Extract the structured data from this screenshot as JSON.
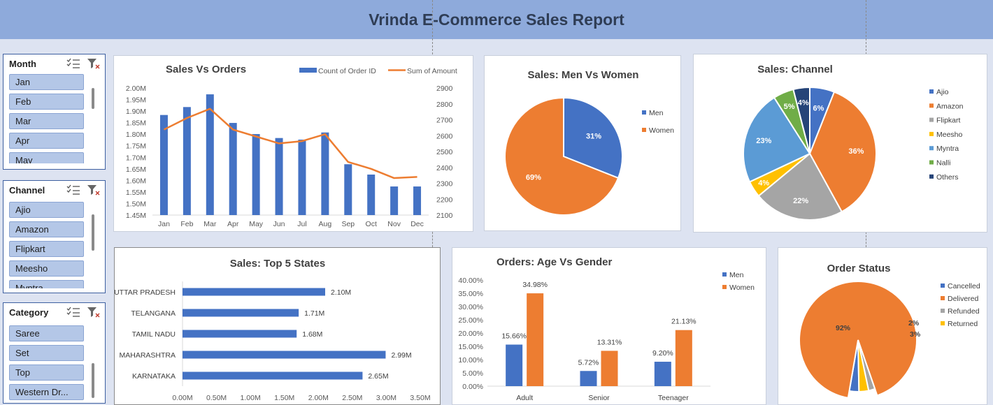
{
  "report_title": "Vrinda E-Commerce Sales Report",
  "colors": {
    "blue": "#4472c4",
    "orange": "#ed7d31",
    "gray": "#a5a5a5",
    "yellow": "#ffc000",
    "lightblue": "#5b9bd5",
    "green": "#70ad47",
    "navy": "#264478"
  },
  "slicers": {
    "month": {
      "title": "Month",
      "items": [
        "Jan",
        "Feb",
        "Mar",
        "Apr",
        "May"
      ]
    },
    "channel": {
      "title": "Channel",
      "items": [
        "Ajio",
        "Amazon",
        "Flipkart",
        "Meesho",
        "Myntra"
      ]
    },
    "category": {
      "title": "Category",
      "items": [
        "Saree",
        "Set",
        "Top",
        "Western Dr..."
      ]
    }
  },
  "chart_data": [
    {
      "id": "sales_vs_orders",
      "type": "bar",
      "title": "Sales Vs Orders",
      "categories": [
        "Jan",
        "Feb",
        "Mar",
        "Apr",
        "May",
        "Jun",
        "Jul",
        "Aug",
        "Sep",
        "Oct",
        "Nov",
        "Dec"
      ],
      "series": [
        {
          "name": "Count of Order ID",
          "type": "bar",
          "axis": "right",
          "values": [
            2730,
            2780,
            2860,
            2680,
            2610,
            2585,
            2575,
            2620,
            2420,
            2355,
            2280,
            2280
          ]
        },
        {
          "name": "Sum of Amount",
          "type": "line",
          "axis": "left",
          "values": [
            1.82,
            1.87,
            1.91,
            1.82,
            1.79,
            1.76,
            1.77,
            1.8,
            1.68,
            1.65,
            1.61,
            1.615
          ]
        }
      ],
      "left_axis": {
        "ylim": [
          1.45,
          2.0
        ],
        "ticks": [
          "1.45M",
          "1.50M",
          "1.55M",
          "1.60M",
          "1.65M",
          "1.70M",
          "1.75M",
          "1.80M",
          "1.85M",
          "1.90M",
          "1.95M",
          "2.00M"
        ]
      },
      "right_axis": {
        "ylim": [
          2100,
          2900
        ],
        "ticks": [
          "2100",
          "2200",
          "2300",
          "2400",
          "2500",
          "2600",
          "2700",
          "2800",
          "2900"
        ]
      },
      "legend": "top-right"
    },
    {
      "id": "men_vs_women",
      "type": "pie",
      "title": "Sales: Men Vs Women",
      "slices": [
        {
          "name": "Men",
          "value": 31,
          "label": "31%"
        },
        {
          "name": "Women",
          "value": 69,
          "label": "69%"
        }
      ],
      "legend": "right"
    },
    {
      "id": "channel",
      "type": "pie",
      "title": "Sales: Channel",
      "slices": [
        {
          "name": "Ajio",
          "value": 6,
          "label": "6%"
        },
        {
          "name": "Amazon",
          "value": 36,
          "label": "36%"
        },
        {
          "name": "Flipkart",
          "value": 22,
          "label": "22%"
        },
        {
          "name": "Meesho",
          "value": 4,
          "label": "4%"
        },
        {
          "name": "Myntra",
          "value": 23,
          "label": "23%"
        },
        {
          "name": "Nalli",
          "value": 5,
          "label": "5%"
        },
        {
          "name": "Others",
          "value": 4,
          "label": "4%"
        }
      ],
      "legend": "right"
    },
    {
      "id": "top_states",
      "type": "bar",
      "orientation": "horizontal",
      "title": "Sales: Top 5 States",
      "categories": [
        "UTTAR PRADESH",
        "TELANGANA",
        "TAMIL NADU",
        "MAHARASHTRA",
        "KARNATAKA"
      ],
      "values": [
        2.1,
        1.71,
        1.68,
        2.99,
        2.65
      ],
      "labels": [
        "2.10M",
        "1.71M",
        "1.68M",
        "2.99M",
        "2.65M"
      ],
      "xlim": [
        0,
        3.5
      ],
      "ticks": [
        "0.00M",
        "0.50M",
        "1.00M",
        "1.50M",
        "2.00M",
        "2.50M",
        "3.00M",
        "3.50M"
      ]
    },
    {
      "id": "age_vs_gender",
      "type": "bar",
      "title": "Orders: Age Vs Gender",
      "categories": [
        "Adult",
        "Senior",
        "Teenager"
      ],
      "series": [
        {
          "name": "Men",
          "values": [
            15.66,
            5.72,
            9.2
          ],
          "labels": [
            "15.66%",
            "5.72%",
            "9.20%"
          ]
        },
        {
          "name": "Women",
          "values": [
            34.98,
            13.31,
            21.13
          ],
          "labels": [
            "34.98%",
            "13.31%",
            "21.13%"
          ]
        }
      ],
      "ylim": [
        0,
        40
      ],
      "ticks": [
        "0.00%",
        "5.00%",
        "10.00%",
        "15.00%",
        "20.00%",
        "25.00%",
        "30.00%",
        "35.00%",
        "40.00%"
      ],
      "legend": "top-right"
    },
    {
      "id": "order_status",
      "type": "pie",
      "title": "Order Status",
      "slices": [
        {
          "name": "Cancelled",
          "value": 3,
          "label": "3%"
        },
        {
          "name": "Delivered",
          "value": 92,
          "label": "92%"
        },
        {
          "name": "Refunded",
          "value": 2,
          "label": "2%"
        },
        {
          "name": "Returned",
          "value": 3,
          "label": "3%"
        }
      ],
      "legend": "right"
    }
  ]
}
